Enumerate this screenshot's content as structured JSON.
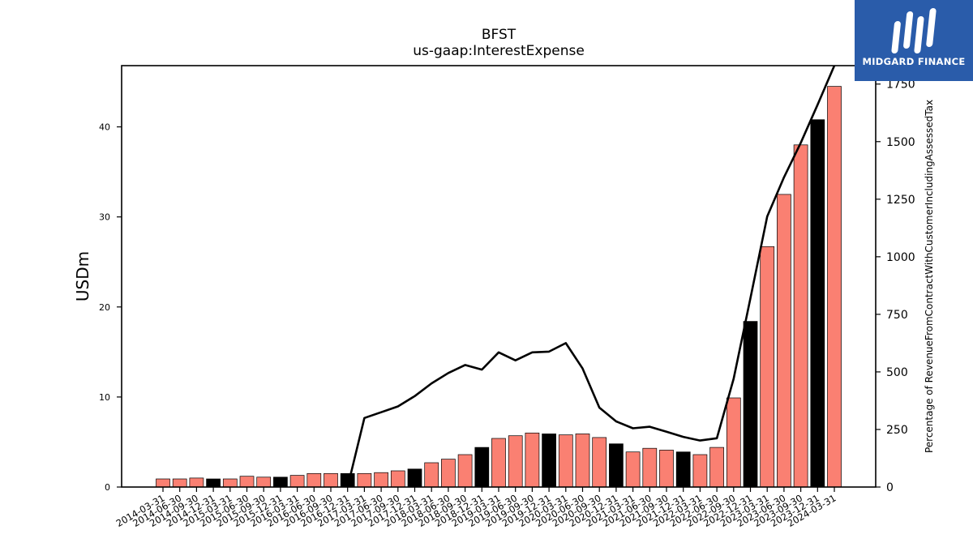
{
  "brand": {
    "name": "MIDGARD FINANCE",
    "color": "#2a5caa"
  },
  "chart_data": {
    "type": "bar",
    "title": "BFST",
    "subtitle": "us-gaap:InterestExpense",
    "ylabel": "USDm",
    "y2label": "Percentage of RevenueFromContractWithCustomerIncludingAssessedTax",
    "ylim": [
      0,
      46.8
    ],
    "y2lim": [
      0,
      1830
    ],
    "yticks": [
      0,
      10,
      20,
      30,
      40
    ],
    "y2ticks": [
      0,
      250,
      500,
      750,
      1000,
      1250,
      1500,
      1750
    ],
    "grid": false,
    "colors": {
      "bar": "#fa8072",
      "bar_q4": "#000000",
      "line": "#000000"
    },
    "categories": [
      "2014-03-31",
      "2014-06-30",
      "2014-09-30",
      "2014-12-31",
      "2015-03-31",
      "2015-06-30",
      "2015-09-30",
      "2015-12-31",
      "2016-03-31",
      "2016-06-30",
      "2016-09-30",
      "2016-12-31",
      "2017-03-31",
      "2017-06-30",
      "2017-09-30",
      "2017-12-31",
      "2018-03-31",
      "2018-06-30",
      "2018-09-30",
      "2018-12-31",
      "2019-03-31",
      "2019-06-30",
      "2019-09-30",
      "2019-12-31",
      "2020-03-31",
      "2020-06-30",
      "2020-09-30",
      "2020-12-31",
      "2021-03-31",
      "2021-06-30",
      "2021-09-30",
      "2021-12-31",
      "2022-03-31",
      "2022-06-30",
      "2022-09-30",
      "2022-12-31",
      "2023-03-31",
      "2023-06-30",
      "2023-09-30",
      "2023-12-31",
      "2024-03-31"
    ],
    "series": [
      {
        "type": "bar",
        "axis": "left",
        "values": [
          0.9,
          0.9,
          1.0,
          0.9,
          0.9,
          1.2,
          1.1,
          1.1,
          1.3,
          1.5,
          1.5,
          1.5,
          1.5,
          1.6,
          1.8,
          2.0,
          2.7,
          3.1,
          3.6,
          4.4,
          5.4,
          5.7,
          6.0,
          5.9,
          5.8,
          5.9,
          5.5,
          4.8,
          3.9,
          4.3,
          4.1,
          3.9,
          3.6,
          4.4,
          9.9,
          18.4,
          26.7,
          32.5,
          38.0,
          40.8,
          44.5
        ]
      },
      {
        "type": "line",
        "axis": "right",
        "values": [
          null,
          null,
          null,
          null,
          null,
          null,
          null,
          null,
          null,
          null,
          null,
          0,
          300,
          325,
          350,
          395,
          450,
          495,
          530,
          510,
          585,
          550,
          585,
          588,
          625,
          515,
          345,
          285,
          255,
          262,
          240,
          218,
          202,
          212,
          470,
          820,
          1175,
          1345,
          1495,
          1660,
          1830
        ]
      }
    ]
  }
}
